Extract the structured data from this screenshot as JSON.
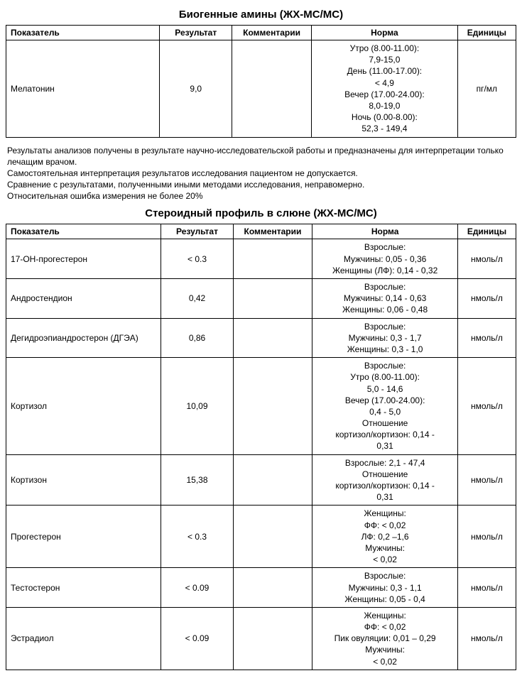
{
  "colors": {
    "text": "#000000",
    "background": "#ffffff",
    "border": "#000000"
  },
  "typography": {
    "body_fontsize_pt": 9,
    "title_fontsize_pt": 11,
    "font_family": "Verdana, Arial, sans-serif"
  },
  "columns": {
    "indicator": "Показатель",
    "result": "Результат",
    "comment": "Комментарии",
    "norm": "Норма",
    "units": "Единицы"
  },
  "section1": {
    "title": "Биогенные амины (ЖХ-МС/МС)",
    "rows": [
      {
        "indicator": "Мелатонин",
        "result": "9,0",
        "comment": "",
        "norm": "Утро (8.00-11.00):\n7,9-15,0\nДень (11.00-17.00):\n< 4,9\nВечер (17.00-24.00):\n8,0-19,0\nНочь (0.00-8.00):\n52,3 - 149,4",
        "units": "пг/мл"
      }
    ]
  },
  "disclaimer": {
    "line1": "Результаты анализов получены в результате научно-исследовательской работы и предназначены для интерпретации только лечащим врачом.",
    "line2": "Самостоятельная интерпретация результатов исследования пациентом не допускается.",
    "line3": "Сравнение с результатами, полученными иными методами исследования, неправомерно.",
    "line4": "Относительная ошибка измерения не более 20%"
  },
  "section2": {
    "title": "Стероидный профиль в слюне (ЖХ-МС/МС)",
    "rows": [
      {
        "indicator": "17-OH-прогестерон",
        "result": "< 0.3",
        "comment": "",
        "norm": "Взрослые:\nМужчины: 0,05 - 0,36\nЖенщины (ЛФ): 0,14 - 0,32",
        "units": "нмоль/л"
      },
      {
        "indicator": "Андростендион",
        "result": "0,42",
        "comment": "",
        "norm": "Взрослые:\nМужчины: 0,14 - 0,63\nЖенщины: 0,06 - 0,48",
        "units": "нмоль/л"
      },
      {
        "indicator": "Дегидроэпиандростерон (ДГЭА)",
        "result": "0,86",
        "comment": "",
        "norm": "Взрослые:\nМужчины: 0,3 - 1,7\nЖенщины: 0,3 - 1,0",
        "units": "нмоль/л"
      },
      {
        "indicator": "Кортизол",
        "result": "10,09",
        "comment": "",
        "norm": "Взрослые:\nУтро (8.00-11.00):\n5,0 - 14,6\nВечер (17.00-24.00):\n0,4 - 5,0\nОтношение\nкортизол/кортизон: 0,14 -\n0,31",
        "units": "нмоль/л"
      },
      {
        "indicator": "Кортизон",
        "result": "15,38",
        "comment": "",
        "norm": "Взрослые: 2,1 - 47,4\nОтношение\nкортизол/кортизон: 0,14 -\n0,31",
        "units": "нмоль/л"
      },
      {
        "indicator": "Прогестерон",
        "result": "< 0.3",
        "comment": "",
        "norm": "Женщины:\nФФ: < 0,02\nЛФ: 0,2 –1,6\nМужчины:\n< 0,02",
        "units": "нмоль/л"
      },
      {
        "indicator": "Тестостерон",
        "result": "< 0.09",
        "comment": "",
        "norm": "Взрослые:\nМужчины: 0,3 - 1,1\nЖенщины: 0,05 - 0,4",
        "units": "нмоль/л"
      },
      {
        "indicator": "Эстрадиол",
        "result": "< 0.09",
        "comment": "",
        "norm": "Женщины:\nФФ: < 0,02\nПик овуляции: 0,01 – 0,29\nМужчины:\n< 0,02",
        "units": "нмоль/л"
      }
    ]
  }
}
